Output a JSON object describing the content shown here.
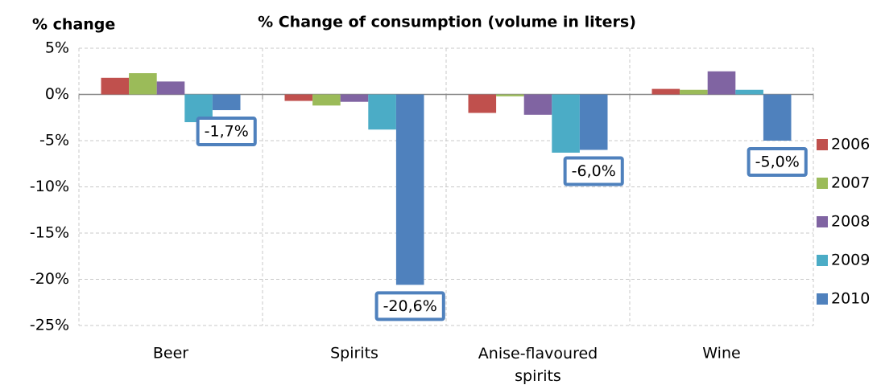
{
  "chart_data": {
    "type": "bar",
    "title": "% Change of consumption (volume in liters)",
    "y_label": "% change",
    "categories": [
      "Beer",
      "Spirits",
      "Anise-flavoured spirits",
      "Wine"
    ],
    "series": [
      {
        "name": "2006",
        "color": "#c0504d",
        "values": [
          1.8,
          -0.7,
          -2.0,
          0.6
        ]
      },
      {
        "name": "2007",
        "color": "#9bbb59",
        "values": [
          2.3,
          -1.2,
          -0.2,
          0.5
        ]
      },
      {
        "name": "2008",
        "color": "#8064a2",
        "values": [
          1.4,
          -0.8,
          -2.2,
          2.5
        ]
      },
      {
        "name": "2009",
        "color": "#4bacc6",
        "values": [
          -3.0,
          -3.8,
          -6.3,
          0.5
        ]
      },
      {
        "name": "2010",
        "color": "#4f81bd",
        "values": [
          -1.7,
          -20.6,
          -6.0,
          -5.0
        ],
        "value_labels": [
          "-1,7%",
          "-20,6%",
          "-6,0%",
          "-5,0%"
        ]
      }
    ],
    "ylim": [
      -25,
      5
    ],
    "yticks": [
      {
        "value": -25,
        "label": "-25%"
      },
      {
        "value": -20,
        "label": "-20%"
      },
      {
        "value": -15,
        "label": "-15%"
      },
      {
        "value": -10,
        "label": "-10%"
      },
      {
        "value": -5,
        "label": "-5%"
      },
      {
        "value": 0,
        "label": "0%"
      },
      {
        "value": 5,
        "label": "5%"
      }
    ],
    "grid": true,
    "legend": "right"
  }
}
